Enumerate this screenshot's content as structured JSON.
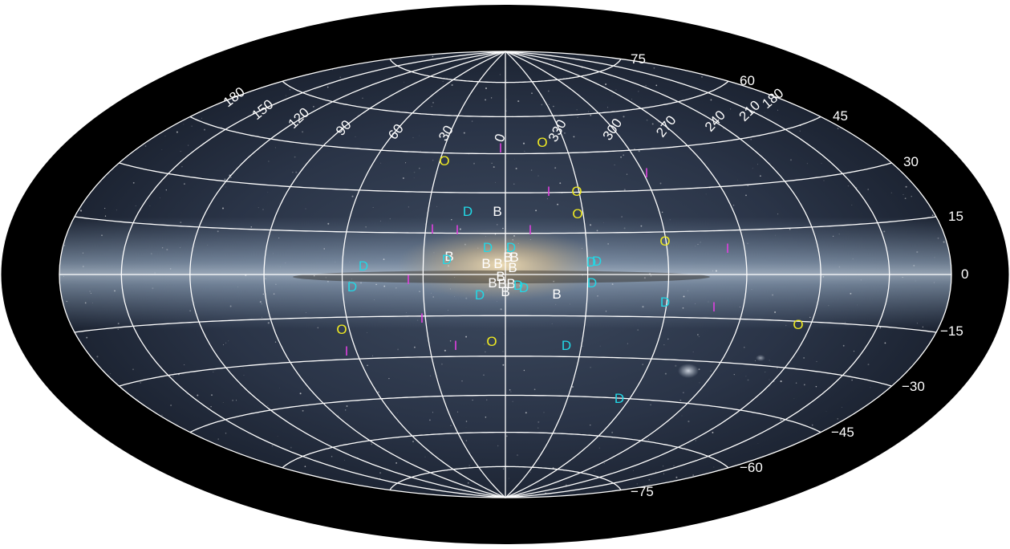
{
  "map": {
    "projection": "Hammer-Aitoff",
    "frame": "galactic",
    "background": "Milky Way panorama",
    "colors": {
      "frame": "#000000",
      "grid": "#ffffff",
      "label_on_sky": "#ffffff",
      "label_outside": "#111111"
    },
    "longitude_labels": [
      "180",
      "150",
      "120",
      "90",
      "60",
      "30",
      "0",
      "330",
      "300",
      "270",
      "240",
      "210",
      "180"
    ],
    "latitude_labels_top": [
      "75",
      "60",
      "45",
      "30",
      "15",
      "0"
    ],
    "latitude_labels_bottom": [
      "−15",
      "−30",
      "−45",
      "−60",
      "−75"
    ]
  },
  "legend_colors": {
    "D": "#22d8e6",
    "B": "#ffffff",
    "O": "#f0ea22",
    "I": "#e040e0"
  },
  "markers": [
    {
      "glyph": "I",
      "type": "I"
    },
    {
      "glyph": "O",
      "type": "O"
    },
    {
      "glyph": "O",
      "type": "O"
    },
    {
      "glyph": "I",
      "type": "I"
    },
    {
      "glyph": "I",
      "type": "I"
    },
    {
      "glyph": "O",
      "type": "O"
    },
    {
      "glyph": "D",
      "type": "D"
    },
    {
      "glyph": "B",
      "type": "B"
    },
    {
      "glyph": "O",
      "type": "O"
    },
    {
      "glyph": "I",
      "type": "I"
    },
    {
      "glyph": "I",
      "type": "I"
    },
    {
      "glyph": "I",
      "type": "I"
    },
    {
      "glyph": "O",
      "type": "O"
    },
    {
      "glyph": "I",
      "type": "I"
    },
    {
      "glyph": "D",
      "type": "D"
    },
    {
      "glyph": "D",
      "type": "D"
    },
    {
      "glyph": "B",
      "type": "B"
    },
    {
      "glyph": "D",
      "type": "D"
    },
    {
      "glyph": "B",
      "type": "B"
    },
    {
      "glyph": "B",
      "type": "B"
    },
    {
      "glyph": "B",
      "type": "B"
    },
    {
      "glyph": "B",
      "type": "B"
    },
    {
      "glyph": "B",
      "type": "B"
    },
    {
      "glyph": "D",
      "type": "D"
    },
    {
      "glyph": "D",
      "type": "D"
    },
    {
      "glyph": "D",
      "type": "D"
    },
    {
      "glyph": "B",
      "type": "B"
    },
    {
      "glyph": "B",
      "type": "B"
    },
    {
      "glyph": "B",
      "type": "B"
    },
    {
      "glyph": "B",
      "type": "B"
    },
    {
      "glyph": "I",
      "type": "I"
    },
    {
      "glyph": "D",
      "type": "D"
    },
    {
      "glyph": "B",
      "type": "B"
    },
    {
      "glyph": "D",
      "type": "D"
    },
    {
      "glyph": "D",
      "type": "D"
    },
    {
      "glyph": "D",
      "type": "D"
    },
    {
      "glyph": "B",
      "type": "B"
    },
    {
      "glyph": "D",
      "type": "D"
    },
    {
      "glyph": "I",
      "type": "I"
    },
    {
      "glyph": "D",
      "type": "D"
    },
    {
      "glyph": "I",
      "type": "I"
    },
    {
      "glyph": "O",
      "type": "O"
    },
    {
      "glyph": "O",
      "type": "O"
    },
    {
      "glyph": "I",
      "type": "I"
    },
    {
      "glyph": "I",
      "type": "I"
    },
    {
      "glyph": "O",
      "type": "O"
    },
    {
      "glyph": "D",
      "type": "D"
    },
    {
      "glyph": "D",
      "type": "D"
    }
  ]
}
